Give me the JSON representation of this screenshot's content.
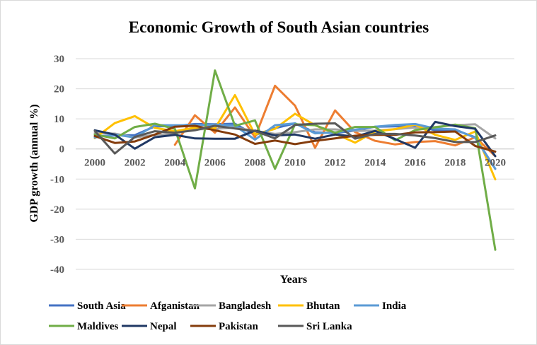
{
  "chart_data": {
    "type": "line",
    "title": "Economic Growth of South Asian countries",
    "xlabel": "Years",
    "ylabel": "GDP growth (annual %)",
    "ylim": [
      -40,
      30
    ],
    "yticks": [
      30,
      20,
      10,
      0,
      -10,
      -20,
      -30,
      -40
    ],
    "grid": true,
    "legend_position": "bottom",
    "x": [
      2000,
      2001,
      2002,
      2003,
      2004,
      2005,
      2006,
      2007,
      2008,
      2009,
      2010,
      2011,
      2012,
      2013,
      2014,
      2015,
      2016,
      2017,
      2018,
      2019,
      2020
    ],
    "xticks": [
      2000,
      2002,
      2004,
      2006,
      2008,
      2010,
      2012,
      2014,
      2016,
      2018,
      2020
    ],
    "series": [
      {
        "name": "South Asia",
        "color": "#4472C4",
        "values": [
          4.2,
          4.5,
          4.6,
          7.5,
          7.6,
          8.3,
          8.2,
          8.4,
          4.6,
          6.9,
          8.5,
          5.5,
          5.3,
          6.1,
          7.4,
          7.5,
          7.8,
          6.2,
          6.3,
          3.9,
          -6.6
        ]
      },
      {
        "name": "Afganistan",
        "color": "#ED7D31",
        "values": [
          null,
          null,
          null,
          null,
          1.4,
          11.2,
          5.4,
          13.8,
          3.9,
          21.0,
          14.4,
          0.4,
          12.8,
          5.6,
          2.7,
          1.5,
          2.3,
          2.6,
          1.2,
          3.9,
          -2.4
        ]
      },
      {
        "name": "Bangladesh",
        "color": "#A5A5A5",
        "values": [
          5.3,
          5.1,
          3.8,
          4.7,
          5.2,
          6.5,
          6.7,
          7.1,
          6.0,
          5.0,
          5.6,
          6.5,
          6.5,
          6.0,
          6.1,
          6.6,
          7.1,
          7.3,
          7.9,
          8.2,
          3.5
        ]
      },
      {
        "name": "Bhutan",
        "color": "#FFC000",
        "values": [
          3.6,
          8.6,
          10.9,
          7.0,
          5.9,
          7.1,
          6.8,
          17.9,
          4.8,
          6.7,
          11.7,
          7.9,
          5.1,
          2.1,
          5.8,
          6.6,
          8.1,
          4.7,
          3.0,
          5.8,
          -10.1
        ]
      },
      {
        "name": "India",
        "color": "#5B9BD5",
        "values": [
          3.8,
          4.8,
          3.8,
          7.9,
          7.9,
          7.9,
          8.1,
          7.7,
          3.1,
          7.9,
          8.5,
          5.2,
          5.5,
          6.4,
          7.4,
          8.0,
          8.3,
          6.8,
          6.5,
          3.7,
          -6.6
        ]
      },
      {
        "name": "Maldives",
        "color": "#70AD47",
        "values": [
          4.8,
          3.5,
          7.3,
          8.4,
          6.7,
          -13.1,
          26.1,
          7.7,
          9.5,
          -6.6,
          8.2,
          7.9,
          5.4,
          7.3,
          7.3,
          2.9,
          6.3,
          7.2,
          8.1,
          6.9,
          -33.5
        ]
      },
      {
        "name": "Nepal",
        "color": "#203864",
        "values": [
          6.2,
          4.8,
          0.1,
          3.9,
          4.7,
          3.5,
          3.4,
          3.4,
          6.1,
          4.5,
          4.8,
          3.4,
          4.8,
          4.1,
          6.0,
          3.3,
          0.4,
          9.0,
          7.6,
          6.7,
          -2.4
        ]
      },
      {
        "name": "Pakistan",
        "color": "#843C0C",
        "values": [
          4.3,
          2.0,
          2.5,
          4.8,
          7.4,
          7.7,
          6.2,
          4.8,
          1.7,
          2.8,
          1.6,
          2.7,
          3.5,
          4.4,
          4.7,
          4.7,
          5.5,
          5.6,
          5.8,
          1.0,
          -0.9
        ]
      },
      {
        "name": "Sri Lanka",
        "color": "#595959",
        "values": [
          6.0,
          -1.5,
          4.0,
          5.9,
          5.4,
          6.2,
          7.7,
          6.8,
          6.0,
          3.5,
          8.0,
          8.4,
          8.5,
          3.4,
          5.0,
          5.0,
          4.5,
          3.6,
          2.3,
          2.3,
          4.5
        ]
      }
    ]
  }
}
